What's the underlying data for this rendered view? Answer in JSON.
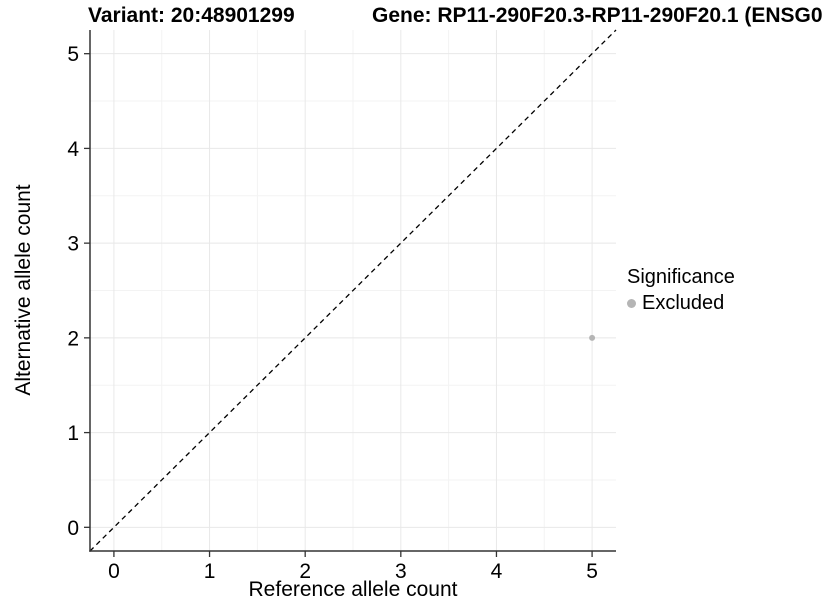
{
  "header": {
    "variant_title": "Variant: 20:48901299",
    "gene_title": "Gene: RP11-290F20.3-RP11-290F20.1 (ENSG0"
  },
  "legend": {
    "title": "Significance",
    "items": [
      {
        "label": "Excluded",
        "color": "#b5b5b5"
      }
    ]
  },
  "chart_data": {
    "type": "scatter",
    "title": "Variant: 20:48901299   Gene: RP11-290F20.3-RP11-290F20.1 (ENSG0",
    "xlabel": "Reference allele count",
    "ylabel": "Alternative allele count",
    "xlim": [
      -0.25,
      5.25
    ],
    "ylim": [
      -0.25,
      5.25
    ],
    "x_ticks": [
      0,
      1,
      2,
      3,
      4,
      5
    ],
    "y_ticks": [
      0,
      1,
      2,
      3,
      4,
      5
    ],
    "x_minor": [
      0.5,
      1.5,
      2.5,
      3.5,
      4.5
    ],
    "y_minor": [
      0.5,
      1.5,
      2.5,
      3.5,
      4.5
    ],
    "grid": true,
    "legend_position": "right",
    "series": [
      {
        "name": "Excluded",
        "color": "#b5b5b5",
        "points": [
          {
            "x": 5,
            "y": 2
          }
        ]
      }
    ],
    "reference_line": {
      "kind": "identity",
      "style": "dashed",
      "color": "#000000"
    },
    "colors": {
      "panel_background": "#ffffff",
      "grid_major": "#e8e8e8",
      "grid_minor": "#f3f3f3",
      "axis_line": "#333333",
      "tick_text": "#000000",
      "point": "#b5b5b5"
    }
  }
}
